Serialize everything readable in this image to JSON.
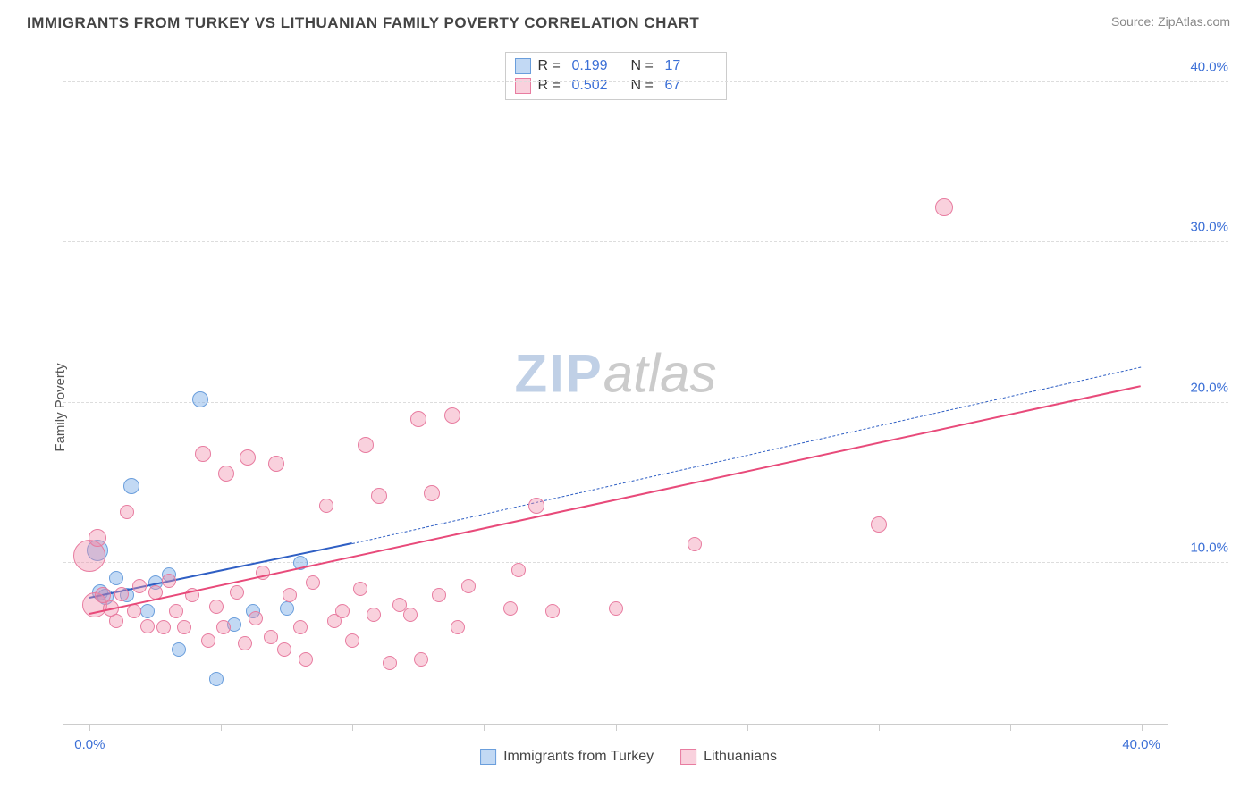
{
  "header": {
    "title": "IMMIGRANTS FROM TURKEY VS LITHUANIAN FAMILY POVERTY CORRELATION CHART",
    "source_label": "Source:",
    "source_name": "ZipAtlas.com"
  },
  "watermark": {
    "part1": "ZIP",
    "part2": "atlas"
  },
  "axes": {
    "ylabel": "Family Poverty",
    "y_ticks": [
      10.0,
      20.0,
      30.0,
      40.0
    ],
    "y_tick_labels": [
      "10.0%",
      "20.0%",
      "30.0%",
      "40.0%"
    ],
    "ymin": 0.0,
    "ymax": 42.0,
    "x_ticks": [
      0,
      5,
      10,
      15,
      20,
      25,
      30,
      35,
      40
    ],
    "x_tick_labels": [
      "0.0%",
      "",
      "",
      "",
      "",
      "",
      "",
      "",
      "40.0%"
    ],
    "xmin": -1.0,
    "xmax": 41.0,
    "tick_label_color": "#3b6fd6",
    "grid_color": "#dddddd"
  },
  "series": [
    {
      "id": "turkey",
      "label": "Immigrants from Turkey",
      "fill": "rgba(120, 170, 230, 0.45)",
      "stroke": "#6a9edc",
      "trend_color": "#2f5fc4",
      "trend_dash": "dashed",
      "trend_width": 2,
      "R": "0.199",
      "N": "17",
      "points": [
        {
          "x": 0.3,
          "y": 10.8,
          "r": 12
        },
        {
          "x": 0.4,
          "y": 8.2,
          "r": 9
        },
        {
          "x": 0.6,
          "y": 7.9,
          "r": 9
        },
        {
          "x": 1.0,
          "y": 9.1,
          "r": 8
        },
        {
          "x": 1.4,
          "y": 8.0,
          "r": 8
        },
        {
          "x": 1.6,
          "y": 14.8,
          "r": 9
        },
        {
          "x": 2.2,
          "y": 7.0,
          "r": 8
        },
        {
          "x": 2.5,
          "y": 8.8,
          "r": 8
        },
        {
          "x": 3.0,
          "y": 9.3,
          "r": 8
        },
        {
          "x": 3.4,
          "y": 4.6,
          "r": 8
        },
        {
          "x": 4.2,
          "y": 20.2,
          "r": 9
        },
        {
          "x": 4.8,
          "y": 2.8,
          "r": 8
        },
        {
          "x": 5.5,
          "y": 6.2,
          "r": 8
        },
        {
          "x": 6.2,
          "y": 7.0,
          "r": 8
        },
        {
          "x": 7.5,
          "y": 7.2,
          "r": 8
        },
        {
          "x": 8.0,
          "y": 10.0,
          "r": 8
        }
      ],
      "trend": {
        "x1": 0,
        "y1": 7.8,
        "x2": 10,
        "y2": 11.2,
        "ext_x2": 40,
        "ext_y2": 22.2
      }
    },
    {
      "id": "lithuanians",
      "label": "Lithuanians",
      "fill": "rgba(240, 140, 170, 0.40)",
      "stroke": "#e87ca0",
      "trend_color": "#e84a7a",
      "trend_dash": "solid",
      "trend_width": 2.5,
      "R": "0.502",
      "N": "67",
      "points": [
        {
          "x": 0.0,
          "y": 10.5,
          "r": 18
        },
        {
          "x": 0.2,
          "y": 7.4,
          "r": 14
        },
        {
          "x": 0.3,
          "y": 11.6,
          "r": 10
        },
        {
          "x": 0.5,
          "y": 8.0,
          "r": 9
        },
        {
          "x": 0.8,
          "y": 7.2,
          "r": 9
        },
        {
          "x": 1.0,
          "y": 6.4,
          "r": 8
        },
        {
          "x": 1.2,
          "y": 8.1,
          "r": 8
        },
        {
          "x": 1.4,
          "y": 13.2,
          "r": 8
        },
        {
          "x": 1.7,
          "y": 7.0,
          "r": 8
        },
        {
          "x": 1.9,
          "y": 8.6,
          "r": 8
        },
        {
          "x": 2.2,
          "y": 6.1,
          "r": 8
        },
        {
          "x": 2.5,
          "y": 8.2,
          "r": 8
        },
        {
          "x": 2.8,
          "y": 6.0,
          "r": 8
        },
        {
          "x": 3.0,
          "y": 8.9,
          "r": 8
        },
        {
          "x": 3.3,
          "y": 7.0,
          "r": 8
        },
        {
          "x": 3.6,
          "y": 6.0,
          "r": 8
        },
        {
          "x": 3.9,
          "y": 8.0,
          "r": 8
        },
        {
          "x": 4.3,
          "y": 16.8,
          "r": 9
        },
        {
          "x": 4.5,
          "y": 5.2,
          "r": 8
        },
        {
          "x": 4.8,
          "y": 7.3,
          "r": 8
        },
        {
          "x": 5.1,
          "y": 6.0,
          "r": 8
        },
        {
          "x": 5.2,
          "y": 15.6,
          "r": 9
        },
        {
          "x": 5.6,
          "y": 8.2,
          "r": 8
        },
        {
          "x": 5.9,
          "y": 5.0,
          "r": 8
        },
        {
          "x": 6.0,
          "y": 16.6,
          "r": 9
        },
        {
          "x": 6.3,
          "y": 6.6,
          "r": 8
        },
        {
          "x": 6.6,
          "y": 9.4,
          "r": 8
        },
        {
          "x": 6.9,
          "y": 5.4,
          "r": 8
        },
        {
          "x": 7.1,
          "y": 16.2,
          "r": 9
        },
        {
          "x": 7.4,
          "y": 4.6,
          "r": 8
        },
        {
          "x": 7.6,
          "y": 8.0,
          "r": 8
        },
        {
          "x": 8.0,
          "y": 6.0,
          "r": 8
        },
        {
          "x": 8.2,
          "y": 4.0,
          "r": 8
        },
        {
          "x": 8.5,
          "y": 8.8,
          "r": 8
        },
        {
          "x": 9.0,
          "y": 13.6,
          "r": 8
        },
        {
          "x": 9.3,
          "y": 6.4,
          "r": 8
        },
        {
          "x": 9.6,
          "y": 7.0,
          "r": 8
        },
        {
          "x": 10.0,
          "y": 5.2,
          "r": 8
        },
        {
          "x": 10.3,
          "y": 8.4,
          "r": 8
        },
        {
          "x": 10.5,
          "y": 17.4,
          "r": 9
        },
        {
          "x": 10.8,
          "y": 6.8,
          "r": 8
        },
        {
          "x": 11.0,
          "y": 14.2,
          "r": 9
        },
        {
          "x": 11.4,
          "y": 3.8,
          "r": 8
        },
        {
          "x": 11.8,
          "y": 7.4,
          "r": 8
        },
        {
          "x": 12.2,
          "y": 6.8,
          "r": 8
        },
        {
          "x": 12.5,
          "y": 19.0,
          "r": 9
        },
        {
          "x": 12.6,
          "y": 4.0,
          "r": 8
        },
        {
          "x": 13.0,
          "y": 14.4,
          "r": 9
        },
        {
          "x": 13.3,
          "y": 8.0,
          "r": 8
        },
        {
          "x": 13.8,
          "y": 19.2,
          "r": 9
        },
        {
          "x": 14.0,
          "y": 6.0,
          "r": 8
        },
        {
          "x": 14.4,
          "y": 8.6,
          "r": 8
        },
        {
          "x": 16.0,
          "y": 7.2,
          "r": 8
        },
        {
          "x": 16.3,
          "y": 9.6,
          "r": 8
        },
        {
          "x": 17.0,
          "y": 13.6,
          "r": 9
        },
        {
          "x": 17.6,
          "y": 7.0,
          "r": 8
        },
        {
          "x": 20.0,
          "y": 7.2,
          "r": 8
        },
        {
          "x": 23.0,
          "y": 11.2,
          "r": 8
        },
        {
          "x": 30.0,
          "y": 12.4,
          "r": 9
        },
        {
          "x": 32.5,
          "y": 32.2,
          "r": 10
        }
      ],
      "trend": {
        "x1": 0,
        "y1": 6.8,
        "x2": 40,
        "y2": 21.0
      }
    }
  ]
}
